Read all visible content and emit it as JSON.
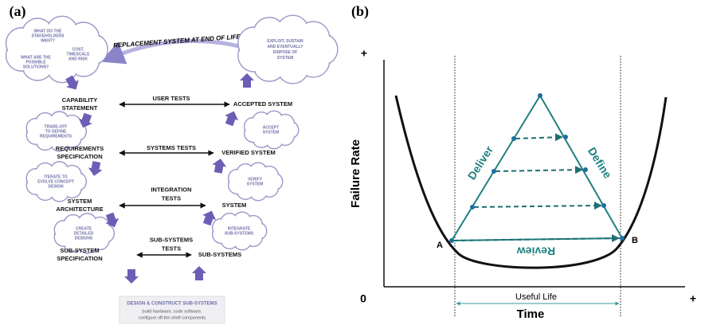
{
  "panel_a": {
    "label": "(a)",
    "top_arrow": "REPLACEMENT SYSTEM AT END OF LIFE",
    "cloud_stakeholders": [
      "WHAT DO THE",
      "STAKEHOLDERS",
      "WANT?"
    ],
    "cloud_solutions": [
      "WHAT ARE THE",
      "POSSIBLE",
      "SOLUTIONS?"
    ],
    "cloud_cost": [
      "COST,",
      "TIMESCALE",
      "AND RISK"
    ],
    "cloud_exploit": [
      "EXPLOIT, SUSTAIN",
      "AND EVENTUALLY",
      "DISPOSE OF",
      "SYSTEM"
    ],
    "levels": [
      {
        "left": [
          "CAPABILITY",
          "STATEMENT"
        ],
        "test": [
          "USER TESTS"
        ],
        "right": [
          "ACCEPTED SYSTEM"
        ]
      },
      {
        "left": [
          "REQUIREMENTS",
          "SPECIFICATION"
        ],
        "test": [
          "SYSTEMS TESTS"
        ],
        "right": [
          "VERIFIED SYSTEM"
        ]
      },
      {
        "left": [
          "SYSTEM",
          "ARCHITECTURE"
        ],
        "test": [
          "INTEGRATION",
          "TESTS"
        ],
        "right": [
          "SYSTEM"
        ]
      },
      {
        "left": [
          "SUB-SYSTEM",
          "SPECIFICATION"
        ],
        "test": [
          "SUB-SYSTEMS",
          "TESTS"
        ],
        "right": [
          "SUB-SYSTEMS"
        ]
      }
    ],
    "left_clouds": [
      [
        "TRADE-OFF",
        "TO DEFINE",
        "REQUIREMENTS"
      ],
      [
        "ITERATE TO",
        "EVOLVE CONCEPT",
        "DESIGN"
      ],
      [
        "CREATE",
        "DETAILED",
        "DESIGNS"
      ]
    ],
    "right_clouds": [
      [
        "ACCEPT",
        "SYSTEM"
      ],
      [
        "VERIFY",
        "SYSTEM"
      ],
      [
        "INTEGRATE",
        "SUB-SYSTEMS"
      ]
    ],
    "bottom": {
      "title": "DESIGN & CONSTRUCT SUB-SYSTEMS",
      "lines": [
        "build hardware, code software,",
        "configure off-the-shelf components"
      ]
    }
  },
  "panel_b": {
    "label": "(b)",
    "y_plus": "+",
    "y_label": "Failure Rate",
    "origin": "0",
    "x_label": "Time",
    "x_plus": "+",
    "useful_life": "Useful Life",
    "point_a": "A",
    "point_b": "B",
    "deliver": "Deliver",
    "define": "Define",
    "review": "Review"
  }
}
